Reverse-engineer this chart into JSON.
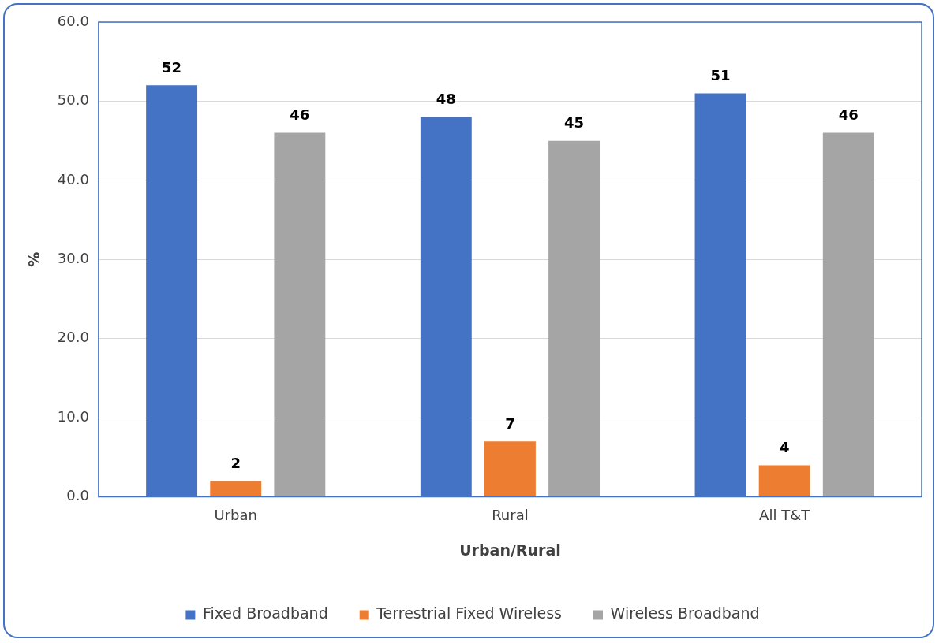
{
  "chart_data": {
    "type": "bar",
    "xlabel": "Urban/Rural",
    "ylabel": "%",
    "categories": [
      "Urban",
      "Rural",
      "All T&T"
    ],
    "series": [
      {
        "name": "Fixed Broadband",
        "color": "#4472c4",
        "values": [
          52,
          48,
          51
        ]
      },
      {
        "name": "Terrestrial Fixed Wireless",
        "color": "#ed7d31",
        "values": [
          2,
          7,
          4
        ]
      },
      {
        "name": "Wireless Broadband",
        "color": "#a5a5a5",
        "values": [
          46,
          45,
          46
        ]
      }
    ],
    "ylim": [
      0,
      60
    ],
    "yticks": [
      {
        "value": 0,
        "label": "0.0"
      },
      {
        "value": 10,
        "label": "10.0"
      },
      {
        "value": 20,
        "label": "20.0"
      },
      {
        "value": 30,
        "label": "30.0"
      },
      {
        "value": 40,
        "label": "40.0"
      },
      {
        "value": 50,
        "label": "50.0"
      },
      {
        "value": 60,
        "label": "60.0"
      }
    ],
    "grid": "y",
    "legend": "bottom",
    "data_labels": true
  }
}
